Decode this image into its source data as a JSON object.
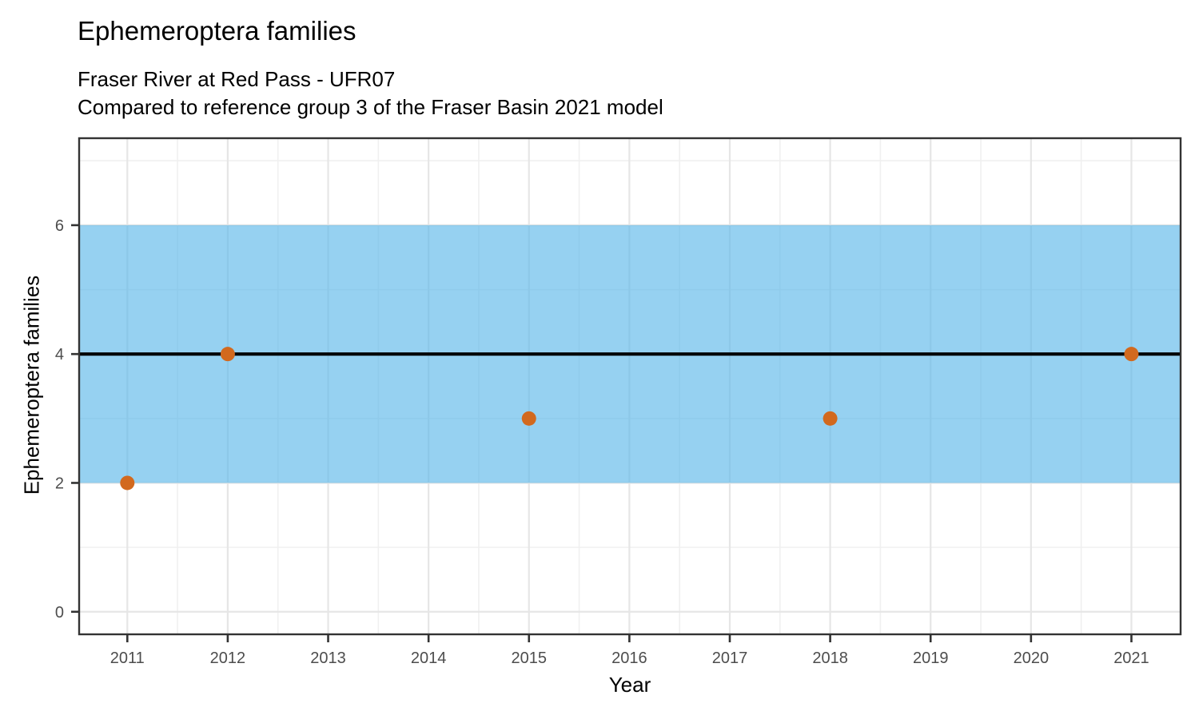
{
  "chart_data": {
    "type": "scatter",
    "title": "Ephemeroptera families",
    "subtitle": [
      "Fraser River at Red Pass - UFR07",
      "Compared to reference group 3 of the Fraser Basin 2021 model"
    ],
    "xlabel": "Year",
    "ylabel": "Ephemeroptera families",
    "x_ticks": [
      2011,
      2012,
      2013,
      2014,
      2015,
      2016,
      2017,
      2018,
      2019,
      2020,
      2021
    ],
    "y_ticks": [
      0,
      2,
      4,
      6
    ],
    "y_minor_ticks": [
      1,
      3,
      5,
      7
    ],
    "xlim": [
      2010.52,
      2021.49
    ],
    "ylim": [
      -0.35,
      7.35
    ],
    "grid": {
      "major": true,
      "minor": true
    },
    "legend": "none",
    "points": [
      {
        "x": 2011,
        "y": 2
      },
      {
        "x": 2012,
        "y": 4
      },
      {
        "x": 2015,
        "y": 3
      },
      {
        "x": 2018,
        "y": 3
      },
      {
        "x": 2021,
        "y": 4
      }
    ],
    "reference_band": {
      "ymin": 2,
      "ymax": 6,
      "fill": "#56B4E9",
      "fill_opacity": 0.62
    },
    "reference_line": {
      "y": 4,
      "color": "#000000"
    },
    "colors": {
      "point": "#D2691E",
      "axis_text": "#4D4D4D",
      "axis_title": "#000000",
      "panel_border": "#333333",
      "grid_major": "#E6E6E6",
      "grid_minor": "#F0F0F0",
      "background": "#FFFFFF"
    }
  }
}
